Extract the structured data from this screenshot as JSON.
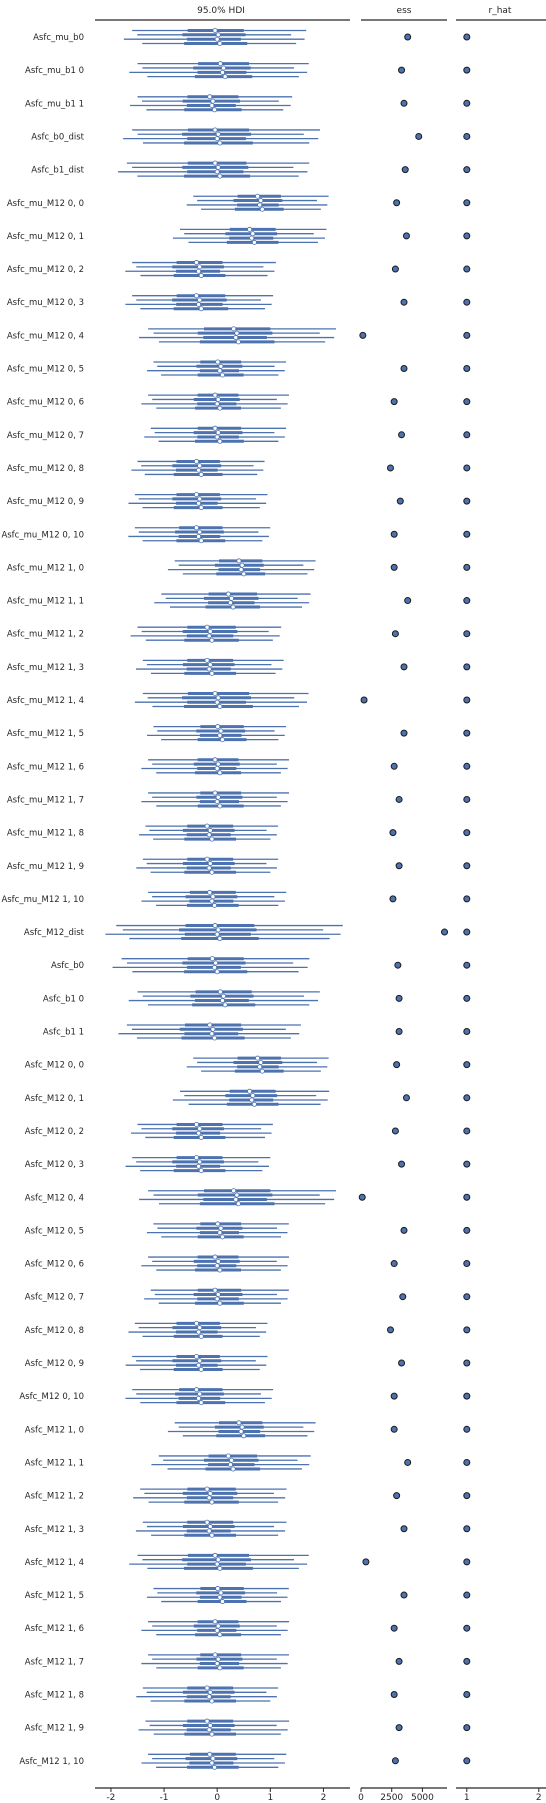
{
  "chart_data": {
    "type": "forest",
    "panels": [
      {
        "title": "95.0% HDI",
        "xlim": [
          -2.3,
          2.5
        ],
        "ticks": [
          -2,
          -1,
          0,
          1,
          2
        ]
      },
      {
        "title": "ess",
        "xlim": [
          0,
          7000
        ],
        "ticks": [
          0,
          2500,
          5000
        ]
      },
      {
        "title": "r_hat",
        "xlim": [
          0.85,
          2.1
        ],
        "ticks": [
          1,
          2
        ]
      }
    ],
    "colors": {
      "line": "#4c72b0",
      "median_fill": "#ffffff",
      "dot_edge": "#1a1a1a"
    },
    "chains": 4,
    "variables": [
      {
        "label": "Asfc_mu_b0",
        "median": 0.0,
        "hdi": [
          -1.6,
          1.55
        ],
        "iqr": [
          -0.6,
          0.5
        ],
        "ess": 3800,
        "r_hat": 1.0
      },
      {
        "label": "Asfc_mu_b1 0",
        "median": 0.1,
        "hdi": [
          -1.5,
          1.6
        ],
        "iqr": [
          -0.4,
          0.6
        ],
        "ess": 3300,
        "r_hat": 1.0
      },
      {
        "label": "Asfc_mu_b1 1",
        "median": -0.1,
        "hdi": [
          -1.5,
          1.3
        ],
        "iqr": [
          -0.6,
          0.4
        ],
        "ess": 3500,
        "r_hat": 1.0
      },
      {
        "label": "Asfc_b0_dist",
        "median": 0.0,
        "hdi": [
          -1.6,
          1.8
        ],
        "iqr": [
          -0.6,
          0.6
        ],
        "ess": 4700,
        "r_hat": 1.0
      },
      {
        "label": "Asfc_b1_dist",
        "median": 0.0,
        "hdi": [
          -1.7,
          1.6
        ],
        "iqr": [
          -0.6,
          0.55
        ],
        "ess": 3600,
        "r_hat": 1.0
      },
      {
        "label": "Asfc_mu_M12 0, 0",
        "median": 0.8,
        "hdi": [
          -0.45,
          2.0
        ],
        "iqr": [
          0.35,
          1.2
        ],
        "ess": 2900,
        "r_hat": 1.0
      },
      {
        "label": "Asfc_mu_M12 0, 1",
        "median": 0.65,
        "hdi": [
          -0.7,
          1.95
        ],
        "iqr": [
          0.2,
          1.1
        ],
        "ess": 3700,
        "r_hat": 1.0
      },
      {
        "label": "Asfc_mu_M12 0, 2",
        "median": -0.35,
        "hdi": [
          -1.6,
          1.0
        ],
        "iqr": [
          -0.8,
          0.1
        ],
        "ess": 2800,
        "r_hat": 1.0
      },
      {
        "label": "Asfc_mu_M12 0, 3",
        "median": -0.35,
        "hdi": [
          -1.6,
          0.95
        ],
        "iqr": [
          -0.8,
          0.15
        ],
        "ess": 3500,
        "r_hat": 1.0
      },
      {
        "label": "Asfc_mu_M12 0, 4",
        "median": 0.35,
        "hdi": [
          -1.3,
          2.1
        ],
        "iqr": [
          -0.3,
          1.0
        ],
        "ess": 150,
        "r_hat": 1.0
      },
      {
        "label": "Asfc_mu_M12 0, 5",
        "median": 0.05,
        "hdi": [
          -1.2,
          1.2
        ],
        "iqr": [
          -0.35,
          0.45
        ],
        "ess": 3500,
        "r_hat": 1.0
      },
      {
        "label": "Asfc_mu_M12 0, 6",
        "median": 0.0,
        "hdi": [
          -1.3,
          1.25
        ],
        "iqr": [
          -0.4,
          0.4
        ],
        "ess": 2700,
        "r_hat": 1.0
      },
      {
        "label": "Asfc_mu_M12 0, 7",
        "median": 0.0,
        "hdi": [
          -1.25,
          1.2
        ],
        "iqr": [
          -0.4,
          0.45
        ],
        "ess": 3300,
        "r_hat": 1.0
      },
      {
        "label": "Asfc_mu_M12 0, 8",
        "median": -0.35,
        "hdi": [
          -1.5,
          0.8
        ],
        "iqr": [
          -0.8,
          0.05
        ],
        "ess": 2400,
        "r_hat": 1.0
      },
      {
        "label": "Asfc_mu_M12 0, 9",
        "median": -0.35,
        "hdi": [
          -1.55,
          0.85
        ],
        "iqr": [
          -0.8,
          0.05
        ],
        "ess": 3200,
        "r_hat": 1.0
      },
      {
        "label": "Asfc_mu_M12 0, 10",
        "median": -0.35,
        "hdi": [
          -1.55,
          0.9
        ],
        "iqr": [
          -0.75,
          0.1
        ],
        "ess": 2700,
        "r_hat": 1.0
      },
      {
        "label": "Asfc_mu_M12 1, 0",
        "median": 0.45,
        "hdi": [
          -0.8,
          1.75
        ],
        "iqr": [
          0.0,
          0.85
        ],
        "ess": 2700,
        "r_hat": 1.0
      },
      {
        "label": "Asfc_mu_M12 1, 1",
        "median": 0.25,
        "hdi": [
          -1.05,
          1.65
        ],
        "iqr": [
          -0.2,
          0.75
        ],
        "ess": 3800,
        "r_hat": 1.0
      },
      {
        "label": "Asfc_mu_M12 1, 2",
        "median": -0.15,
        "hdi": [
          -1.5,
          1.1
        ],
        "iqr": [
          -0.6,
          0.35
        ],
        "ess": 2800,
        "r_hat": 1.0
      },
      {
        "label": "Asfc_mu_M12 1, 3",
        "median": -0.15,
        "hdi": [
          -1.4,
          1.15
        ],
        "iqr": [
          -0.6,
          0.3
        ],
        "ess": 3500,
        "r_hat": 1.0
      },
      {
        "label": "Asfc_mu_M12 1, 4",
        "median": 0.0,
        "hdi": [
          -1.4,
          1.6
        ],
        "iqr": [
          -0.6,
          0.6
        ],
        "ess": 250,
        "r_hat": 1.0
      },
      {
        "label": "Asfc_mu_M12 1, 5",
        "median": 0.05,
        "hdi": [
          -1.2,
          1.2
        ],
        "iqr": [
          -0.35,
          0.5
        ],
        "ess": 3500,
        "r_hat": 1.0
      },
      {
        "label": "Asfc_mu_M12 1, 6",
        "median": 0.0,
        "hdi": [
          -1.3,
          1.25
        ],
        "iqr": [
          -0.4,
          0.4
        ],
        "ess": 2700,
        "r_hat": 1.0
      },
      {
        "label": "Asfc_mu_M12 1, 7",
        "median": 0.0,
        "hdi": [
          -1.3,
          1.25
        ],
        "iqr": [
          -0.35,
          0.45
        ],
        "ess": 3100,
        "r_hat": 1.0
      },
      {
        "label": "Asfc_mu_M12 1, 8",
        "median": -0.15,
        "hdi": [
          -1.35,
          1.05
        ],
        "iqr": [
          -0.6,
          0.3
        ],
        "ess": 2600,
        "r_hat": 1.0
      },
      {
        "label": "Asfc_mu_M12 1, 9",
        "median": -0.15,
        "hdi": [
          -1.4,
          1.05
        ],
        "iqr": [
          -0.6,
          0.3
        ],
        "ess": 3100,
        "r_hat": 1.0
      },
      {
        "label": "Asfc_mu_M12 1, 10",
        "median": -0.1,
        "hdi": [
          -1.3,
          1.2
        ],
        "iqr": [
          -0.55,
          0.35
        ],
        "ess": 2600,
        "r_hat": 1.0
      },
      {
        "label": "Asfc_M12_dist",
        "median": 0.0,
        "hdi": [
          -1.9,
          2.2
        ],
        "iqr": [
          -0.65,
          0.7
        ],
        "ess": 6800,
        "r_hat": 1.0
      },
      {
        "label": "Asfc_b0",
        "median": -0.05,
        "hdi": [
          -1.8,
          1.6
        ],
        "iqr": [
          -0.6,
          0.5
        ],
        "ess": 3000,
        "r_hat": 1.0
      },
      {
        "label": "Asfc_b1 0",
        "median": 0.1,
        "hdi": [
          -1.5,
          1.8
        ],
        "iqr": [
          -0.45,
          0.65
        ],
        "ess": 3100,
        "r_hat": 1.0
      },
      {
        "label": "Asfc_b1 1",
        "median": -0.1,
        "hdi": [
          -1.7,
          1.45
        ],
        "iqr": [
          -0.65,
          0.45
        ],
        "ess": 3100,
        "r_hat": 1.0
      },
      {
        "label": "Asfc_M12 0, 0",
        "median": 0.8,
        "hdi": [
          -0.45,
          2.0
        ],
        "iqr": [
          0.35,
          1.2
        ],
        "ess": 2900,
        "r_hat": 1.0
      },
      {
        "label": "Asfc_M12 0, 1",
        "median": 0.65,
        "hdi": [
          -0.7,
          2.0
        ],
        "iqr": [
          0.2,
          1.1
        ],
        "ess": 3700,
        "r_hat": 1.0
      },
      {
        "label": "Asfc_M12 0, 2",
        "median": -0.35,
        "hdi": [
          -1.5,
          0.95
        ],
        "iqr": [
          -0.8,
          0.1
        ],
        "ess": 2800,
        "r_hat": 1.0
      },
      {
        "label": "Asfc_M12 0, 3",
        "median": -0.35,
        "hdi": [
          -1.6,
          0.9
        ],
        "iqr": [
          -0.8,
          0.1
        ],
        "ess": 3300,
        "r_hat": 1.0
      },
      {
        "label": "Asfc_M12 0, 4",
        "median": 0.35,
        "hdi": [
          -1.3,
          2.1
        ],
        "iqr": [
          -0.3,
          1.0
        ],
        "ess": 100,
        "r_hat": 1.0
      },
      {
        "label": "Asfc_M12 0, 5",
        "median": 0.05,
        "hdi": [
          -1.2,
          1.25
        ],
        "iqr": [
          -0.35,
          0.45
        ],
        "ess": 3500,
        "r_hat": 1.0
      },
      {
        "label": "Asfc_M12 0, 6",
        "median": 0.0,
        "hdi": [
          -1.3,
          1.25
        ],
        "iqr": [
          -0.4,
          0.4
        ],
        "ess": 2700,
        "r_hat": 1.0
      },
      {
        "label": "Asfc_M12 0, 7",
        "median": 0.0,
        "hdi": [
          -1.25,
          1.25
        ],
        "iqr": [
          -0.4,
          0.45
        ],
        "ess": 3400,
        "r_hat": 1.0
      },
      {
        "label": "Asfc_M12 0, 8",
        "median": -0.35,
        "hdi": [
          -1.55,
          0.85
        ],
        "iqr": [
          -0.8,
          0.05
        ],
        "ess": 2400,
        "r_hat": 1.0
      },
      {
        "label": "Asfc_M12 0, 9",
        "median": -0.35,
        "hdi": [
          -1.6,
          0.85
        ],
        "iqr": [
          -0.8,
          0.05
        ],
        "ess": 3300,
        "r_hat": 1.0
      },
      {
        "label": "Asfc_M12 0, 10",
        "median": -0.35,
        "hdi": [
          -1.6,
          0.95
        ],
        "iqr": [
          -0.75,
          0.1
        ],
        "ess": 2700,
        "r_hat": 1.0
      },
      {
        "label": "Asfc_M12 1, 0",
        "median": 0.45,
        "hdi": [
          -0.8,
          1.75
        ],
        "iqr": [
          0.0,
          0.85
        ],
        "ess": 2700,
        "r_hat": 1.0
      },
      {
        "label": "Asfc_M12 1, 1",
        "median": 0.25,
        "hdi": [
          -1.1,
          1.65
        ],
        "iqr": [
          -0.2,
          0.75
        ],
        "ess": 3800,
        "r_hat": 1.0
      },
      {
        "label": "Asfc_M12 1, 2",
        "median": -0.15,
        "hdi": [
          -1.45,
          1.2
        ],
        "iqr": [
          -0.6,
          0.35
        ],
        "ess": 2900,
        "r_hat": 1.0
      },
      {
        "label": "Asfc_M12 1, 3",
        "median": -0.15,
        "hdi": [
          -1.4,
          1.2
        ],
        "iqr": [
          -0.6,
          0.3
        ],
        "ess": 3500,
        "r_hat": 1.0
      },
      {
        "label": "Asfc_M12 1, 4",
        "median": 0.0,
        "hdi": [
          -1.5,
          1.6
        ],
        "iqr": [
          -0.6,
          0.6
        ],
        "ess": 400,
        "r_hat": 1.0
      },
      {
        "label": "Asfc_M12 1, 5",
        "median": 0.05,
        "hdi": [
          -1.2,
          1.25
        ],
        "iqr": [
          -0.35,
          0.5
        ],
        "ess": 3500,
        "r_hat": 1.0
      },
      {
        "label": "Asfc_M12 1, 6",
        "median": 0.0,
        "hdi": [
          -1.3,
          1.25
        ],
        "iqr": [
          -0.4,
          0.4
        ],
        "ess": 2700,
        "r_hat": 1.0
      },
      {
        "label": "Asfc_M12 1, 7",
        "median": 0.0,
        "hdi": [
          -1.3,
          1.25
        ],
        "iqr": [
          -0.35,
          0.45
        ],
        "ess": 3100,
        "r_hat": 1.0
      },
      {
        "label": "Asfc_M12 1, 8",
        "median": -0.15,
        "hdi": [
          -1.4,
          1.05
        ],
        "iqr": [
          -0.6,
          0.3
        ],
        "ess": 2700,
        "r_hat": 1.0
      },
      {
        "label": "Asfc_M12 1, 9",
        "median": -0.15,
        "hdi": [
          -1.35,
          1.25
        ],
        "iqr": [
          -0.6,
          0.3
        ],
        "ess": 3100,
        "r_hat": 1.0
      },
      {
        "label": "Asfc_M12 1, 10",
        "median": -0.1,
        "hdi": [
          -1.3,
          1.2
        ],
        "iqr": [
          -0.55,
          0.35
        ],
        "ess": 2800,
        "r_hat": 1.0
      }
    ]
  }
}
